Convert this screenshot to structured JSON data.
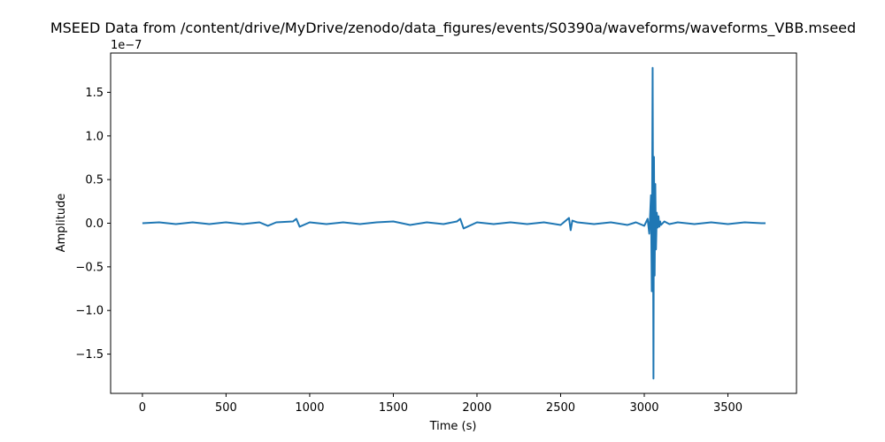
{
  "chart_data": {
    "type": "line",
    "title": "MSEED Data from /content/drive/MyDrive/zenodo/data_figures/events/S0390a/waveforms/waveforms_VBB.mseed",
    "xlabel": "Time (s)",
    "ylabel": "Amplitude",
    "y_offset_label": "1e−7",
    "xlim": [
      -190,
      3910
    ],
    "ylim": [
      -1.95,
      1.95
    ],
    "y_scale_note": "values in units of 1e-7",
    "x_ticks": [
      0,
      500,
      1000,
      1500,
      2000,
      2500,
      3000,
      3500
    ],
    "x_tick_labels": [
      "0",
      "500",
      "1000",
      "1500",
      "2000",
      "2500",
      "3000",
      "3500"
    ],
    "y_ticks": [
      -1.5,
      -1.0,
      -0.5,
      0.0,
      0.5,
      1.0,
      1.5
    ],
    "y_tick_labels": [
      "−1.5",
      "−1.0",
      "−0.5",
      "0.0",
      "0.5",
      "1.0",
      "1.5"
    ],
    "grid": false,
    "line_color": "#1f77b4",
    "series": [
      {
        "x": [
          0,
          100,
          200,
          300,
          400,
          500,
          600,
          700,
          750,
          800,
          900,
          920,
          940,
          1000,
          1100,
          1200,
          1300,
          1400,
          1500,
          1600,
          1700,
          1800,
          1880,
          1900,
          1920,
          2000,
          2100,
          2200,
          2300,
          2400,
          2500,
          2550,
          2560,
          2570,
          2600,
          2700,
          2800,
          2900,
          2950,
          3000,
          3020,
          3030,
          3040,
          3045,
          3050,
          3055,
          3058,
          3062,
          3066,
          3070,
          3075,
          3080,
          3085,
          3090,
          3095,
          3100,
          3120,
          3150,
          3200,
          3300,
          3400,
          3500,
          3600,
          3700,
          3725
        ],
        "y": [
          0.0,
          0.01,
          -0.01,
          0.01,
          -0.01,
          0.01,
          -0.01,
          0.01,
          -0.03,
          0.01,
          0.02,
          0.05,
          -0.04,
          0.01,
          -0.01,
          0.01,
          -0.01,
          0.01,
          0.02,
          -0.02,
          0.01,
          -0.01,
          0.02,
          0.05,
          -0.06,
          0.01,
          -0.01,
          0.01,
          -0.01,
          0.01,
          -0.02,
          0.06,
          -0.08,
          0.03,
          0.01,
          -0.01,
          0.01,
          -0.02,
          0.01,
          -0.03,
          0.05,
          -0.12,
          0.32,
          -0.78,
          1.78,
          -1.78,
          0.76,
          -0.6,
          0.45,
          -0.3,
          0.12,
          -0.05,
          0.08,
          -0.04,
          0.02,
          -0.02,
          0.02,
          -0.01,
          0.01,
          -0.01,
          0.01,
          -0.01,
          0.01,
          0.0,
          0.0
        ]
      }
    ]
  }
}
